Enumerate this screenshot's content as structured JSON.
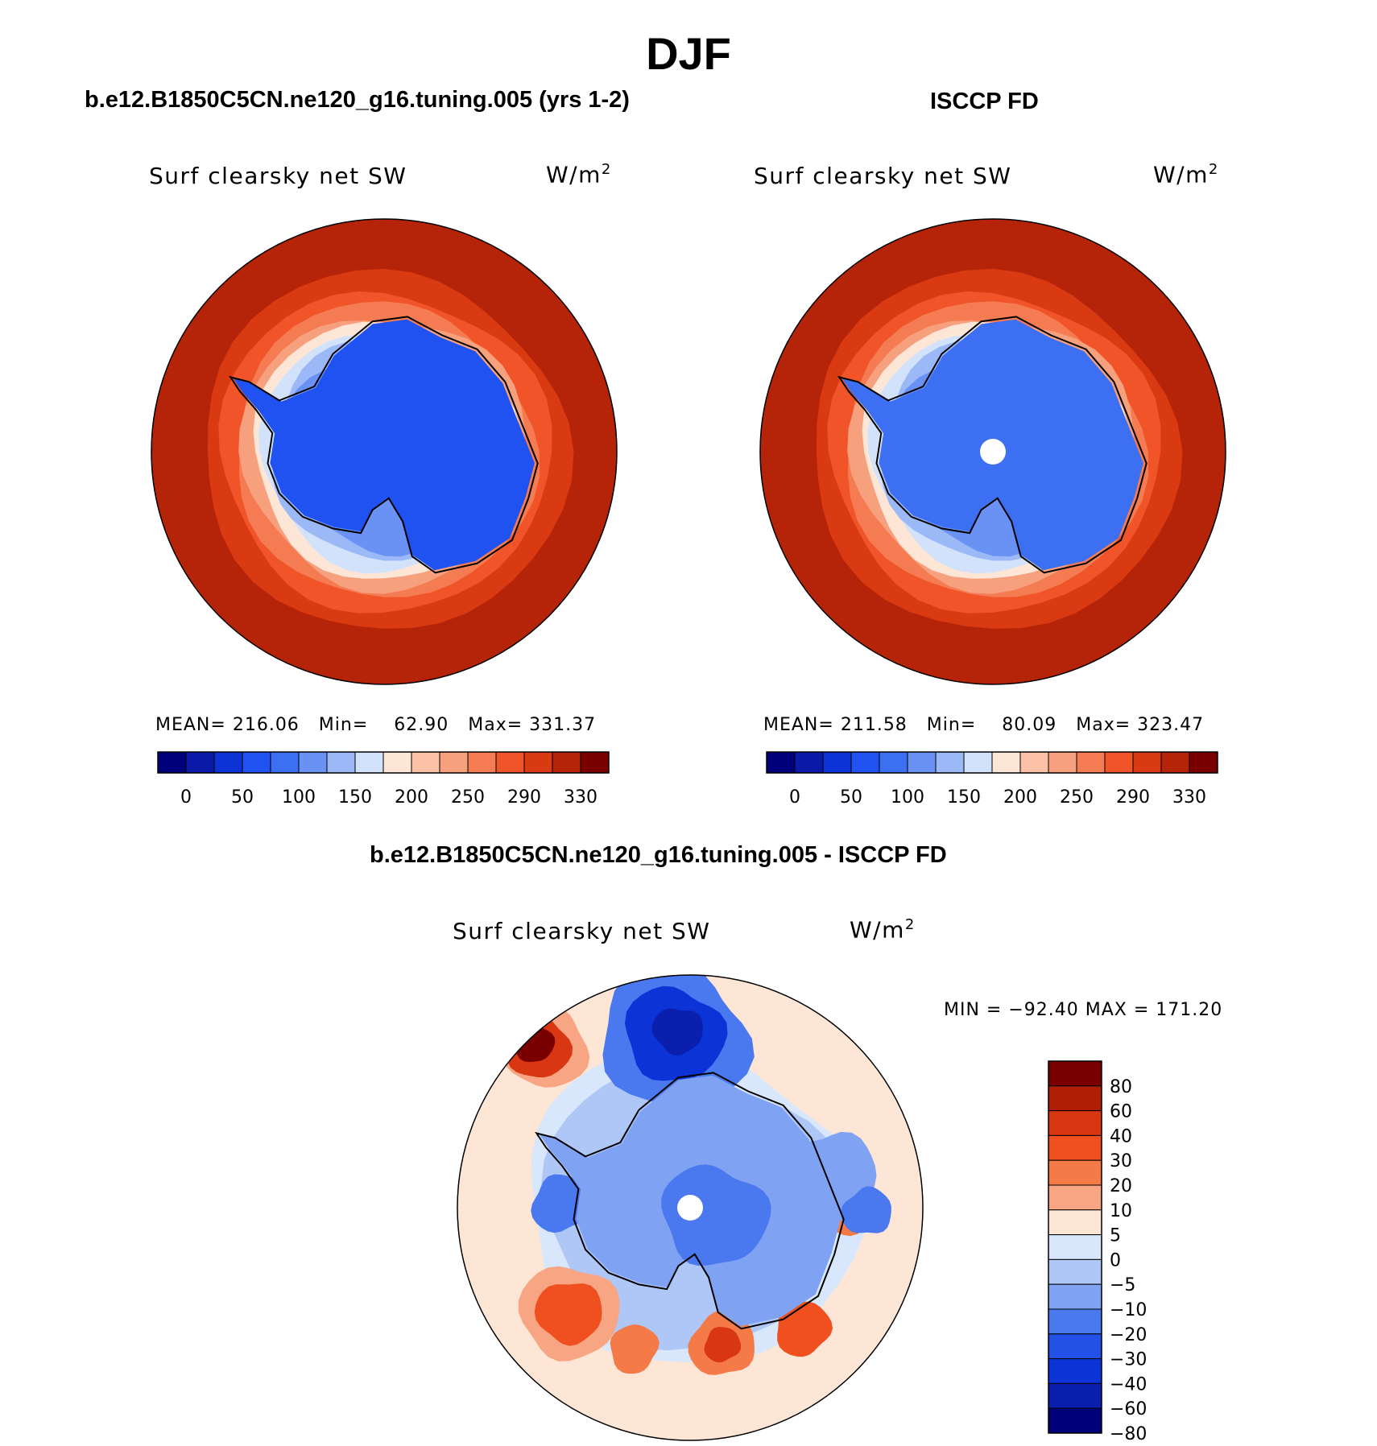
{
  "season": "DJF",
  "panels": [
    {
      "id": "model",
      "subtitle": "b.e12.B1850C5CN.ne120_g16.tuning.005 (yrs 1-2)",
      "variable": "Surf clearsky net SW",
      "units_base": "W/m",
      "units_exp": "2",
      "stats": {
        "mean_label": "MEAN=",
        "mean": "216.06",
        "min_label": "Min=",
        "min": "62.90",
        "max_label": "Max=",
        "max": "331.37"
      }
    },
    {
      "id": "obs",
      "subtitle": "ISCCP FD",
      "variable": "Surf clearsky net SW",
      "units_base": "W/m",
      "units_exp": "2",
      "stats": {
        "mean_label": "MEAN=",
        "mean": "211.58",
        "min_label": "Min=",
        "min": "80.09",
        "max_label": "Max=",
        "max": "323.47"
      }
    },
    {
      "id": "diff",
      "subtitle": "b.e12.B1850C5CN.ne120_g16.tuning.005 - ISCCP FD",
      "variable": "Surf clearsky net SW",
      "units_base": "W/m",
      "units_exp": "2",
      "minmax": "MIN = −92.40 MAX = 171.20"
    }
  ],
  "abs_colorbar": {
    "colors": [
      "#00007a",
      "#0a1aa8",
      "#0b33d6",
      "#1f52f0",
      "#3d6ff2",
      "#6a92f5",
      "#9bb8f7",
      "#d2e2fa",
      "#fde6d6",
      "#fbc2a8",
      "#f7a07e",
      "#f47b52",
      "#f05428",
      "#d93a12",
      "#b52408",
      "#7a0000"
    ],
    "tick_labels": [
      "0",
      "50",
      "100",
      "150",
      "200",
      "250",
      "290",
      "330"
    ]
  },
  "diff_colorbar": {
    "colors_top_to_bottom": [
      "#7a0000",
      "#b01e05",
      "#d93612",
      "#f0501f",
      "#f47b48",
      "#f7a583",
      "#fde6d6",
      "#d8e7fb",
      "#aec7f7",
      "#7fa2f3",
      "#4a78ef",
      "#2350e6",
      "#0b33d6",
      "#0b1fae",
      "#00007a"
    ],
    "tick_labels": [
      "80",
      "60",
      "40",
      "30",
      "20",
      "10",
      "5",
      "0",
      "−5",
      "−10",
      "−20",
      "−30",
      "−40",
      "−60",
      "−80"
    ]
  },
  "map_colors": {
    "outer_ocean": "#b52408",
    "ocean_mid": "#d93a12",
    "ocean_inner": "#f05428",
    "band_orange": "#f47b52",
    "band_peach": "#f7a07e",
    "band_light": "#fde6d6",
    "sea_ice_pale": "#d2e2fa",
    "sea_ice_light": "#9bb8f7",
    "ice_medium": "#6a92f5",
    "continent_model": "#1f52f0",
    "continent_obs": "#3d6ff2",
    "pole_hole": "#ffffff",
    "diff_background": "#fde6d6"
  }
}
